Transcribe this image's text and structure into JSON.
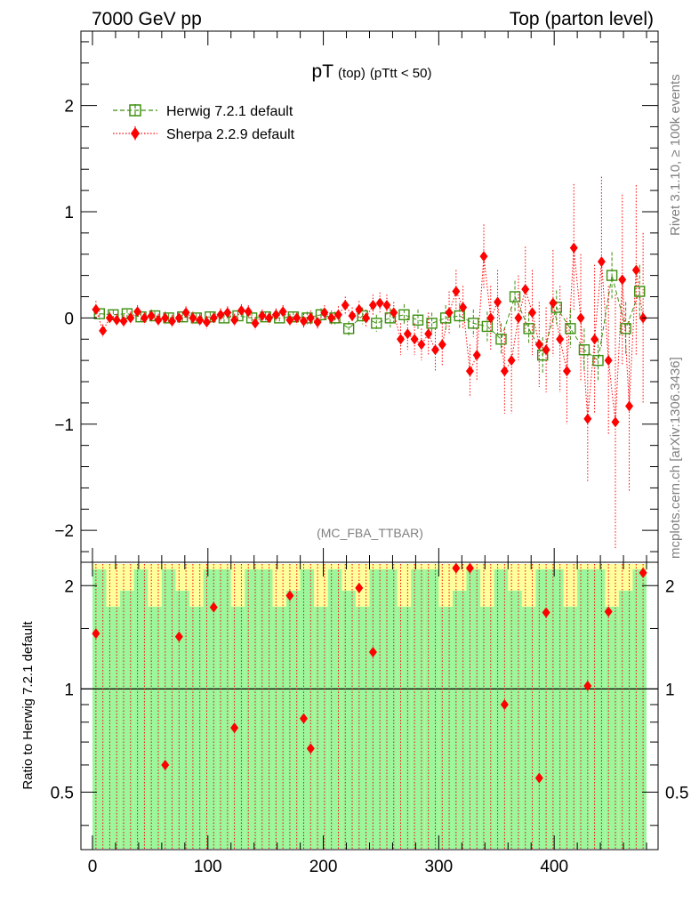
{
  "header": {
    "left": "7000 GeV pp",
    "right": "Top (parton level)"
  },
  "side_text": {
    "rivet": "Rivet 3.1.10, ≥ 100k events",
    "source": "mcplots.cern.ch [arXiv:1306.3436]"
  },
  "chart_data": [
    {
      "type": "scatter",
      "title": "pT",
      "title_small": "(top)",
      "title_cut": "(pTtt < 50)",
      "analysis": "(MC_FBA_TTBAR)",
      "xlim": [
        -10,
        490
      ],
      "ylim": [
        -2.3,
        2.7
      ],
      "y_ticks": [
        -2,
        -1,
        0,
        1,
        2
      ],
      "y_tick_labels": [
        "−2",
        "−1",
        "0",
        "1",
        "2"
      ],
      "legend_position": "top-left",
      "colors": {
        "herwig": "#3c8f0f",
        "sherpa": "#ff0000"
      },
      "series": [
        {
          "name": "Herwig 7.2.1 default",
          "marker": "open-square",
          "x": [
            6,
            18,
            30,
            42,
            54,
            66,
            78,
            90,
            102,
            114,
            126,
            138,
            150,
            162,
            174,
            186,
            198,
            210,
            222,
            234,
            246,
            258,
            270,
            282,
            294,
            306,
            318,
            330,
            342,
            354,
            366,
            378,
            390,
            402,
            414,
            426,
            438,
            450,
            462,
            474
          ],
          "y": [
            0.04,
            0.03,
            0.04,
            0.01,
            0.02,
            0.0,
            0.01,
            0.0,
            0.01,
            0.0,
            0.02,
            0.0,
            0.01,
            0.0,
            0.01,
            0.0,
            0.03,
            0.0,
            -0.1,
            0.02,
            -0.05,
            0.0,
            0.03,
            -0.02,
            -0.05,
            0.0,
            0.02,
            -0.05,
            -0.08,
            -0.2,
            0.2,
            -0.1,
            -0.35,
            0.1,
            -0.1,
            -0.3,
            -0.4,
            0.4,
            -0.1,
            0.25
          ],
          "err": [
            0.05,
            0.04,
            0.04,
            0.04,
            0.04,
            0.04,
            0.04,
            0.04,
            0.04,
            0.04,
            0.04,
            0.05,
            0.05,
            0.05,
            0.05,
            0.06,
            0.06,
            0.06,
            0.07,
            0.08,
            0.08,
            0.09,
            0.1,
            0.1,
            0.1,
            0.12,
            0.12,
            0.13,
            0.14,
            0.15,
            0.15,
            0.15,
            0.17,
            0.16,
            0.18,
            0.2,
            0.2,
            0.22,
            0.25,
            0.25
          ]
        },
        {
          "name": "Sherpa 2.2.9 default",
          "marker": "filled-diamond",
          "x": [
            3,
            9,
            15,
            21,
            27,
            33,
            39,
            45,
            51,
            57,
            63,
            69,
            75,
            81,
            87,
            93,
            99,
            105,
            111,
            117,
            123,
            129,
            135,
            141,
            147,
            153,
            159,
            165,
            171,
            177,
            183,
            189,
            195,
            201,
            207,
            213,
            219,
            225,
            231,
            237,
            243,
            249,
            255,
            261,
            267,
            273,
            279,
            285,
            291,
            297,
            303,
            309,
            315,
            321,
            327,
            333,
            339,
            345,
            351,
            357,
            363,
            369,
            375,
            381,
            387,
            393,
            399,
            405,
            411,
            417,
            423,
            429,
            435,
            441,
            447,
            453,
            459,
            465,
            471,
            477
          ],
          "y": [
            0.08,
            -0.12,
            0.0,
            -0.02,
            -0.03,
            0.0,
            0.06,
            0.0,
            0.02,
            -0.02,
            0.0,
            -0.03,
            0.0,
            0.05,
            0.0,
            -0.02,
            -0.04,
            0.0,
            0.03,
            0.05,
            -0.02,
            0.07,
            0.06,
            -0.05,
            0.02,
            0.0,
            0.03,
            0.06,
            -0.02,
            0.0,
            -0.03,
            0.0,
            -0.04,
            0.05,
            0.0,
            0.03,
            0.12,
            0.02,
            0.08,
            0.0,
            0.12,
            0.14,
            0.12,
            0.05,
            -0.2,
            -0.15,
            -0.2,
            -0.25,
            -0.15,
            -0.3,
            -0.25,
            0.05,
            0.25,
            0.1,
            -0.5,
            -0.35,
            0.58,
            0.0,
            0.15,
            -0.5,
            -0.4,
            0.0,
            0.27,
            0.05,
            -0.25,
            -0.3,
            0.14,
            -0.2,
            -0.5,
            0.66,
            0.0,
            -0.95,
            -0.2,
            0.53,
            -0.4,
            -0.98,
            0.36,
            -0.83,
            0.45,
            0.0
          ],
          "err": [
            0.08,
            0.06,
            0.06,
            0.06,
            0.06,
            0.06,
            0.06,
            0.06,
            0.06,
            0.06,
            0.06,
            0.06,
            0.06,
            0.06,
            0.06,
            0.06,
            0.06,
            0.06,
            0.06,
            0.06,
            0.06,
            0.06,
            0.06,
            0.06,
            0.06,
            0.06,
            0.06,
            0.06,
            0.06,
            0.06,
            0.07,
            0.07,
            0.07,
            0.07,
            0.07,
            0.08,
            0.08,
            0.08,
            0.08,
            0.08,
            0.1,
            0.1,
            0.1,
            0.1,
            0.15,
            0.15,
            0.15,
            0.15,
            0.2,
            0.2,
            0.2,
            0.2,
            0.2,
            0.2,
            0.25,
            0.25,
            0.3,
            0.3,
            0.3,
            0.4,
            0.5,
            0.4,
            0.4,
            0.4,
            0.4,
            0.4,
            0.5,
            0.5,
            0.5,
            0.6,
            0.6,
            0.6,
            0.7,
            0.8,
            0.7,
            1.2,
            0.8,
            0.8,
            0.8,
            0.8
          ]
        }
      ]
    },
    {
      "type": "scatter",
      "ylabel": "Ratio to Herwig 7.2.1 default",
      "xlim": [
        -10,
        490
      ],
      "ylim": [
        0.34,
        2.34
      ],
      "x_ticks": [
        0,
        100,
        200,
        300,
        400
      ],
      "x_tick_labels": [
        "0",
        "100",
        "200",
        "300",
        "400"
      ],
      "y_ticks": [
        0.5,
        1,
        2
      ],
      "y_tick_labels": [
        "0.5",
        "1",
        "2"
      ],
      "reference_line": 1,
      "band_colors": {
        "inner": "#9cf79c",
        "outer": "#ffff9c"
      },
      "sherpa_ratio": {
        "x": [
          3,
          63,
          75,
          105,
          123,
          171,
          183,
          189,
          231,
          243,
          315,
          327,
          357,
          387,
          393,
          429,
          447,
          477
        ],
        "y": [
          1.45,
          0.6,
          1.42,
          1.73,
          0.77,
          1.87,
          0.82,
          0.67,
          1.97,
          1.28,
          2.25,
          2.25,
          0.9,
          0.55,
          1.67,
          1.02,
          1.68,
          2.18
        ]
      }
    }
  ]
}
